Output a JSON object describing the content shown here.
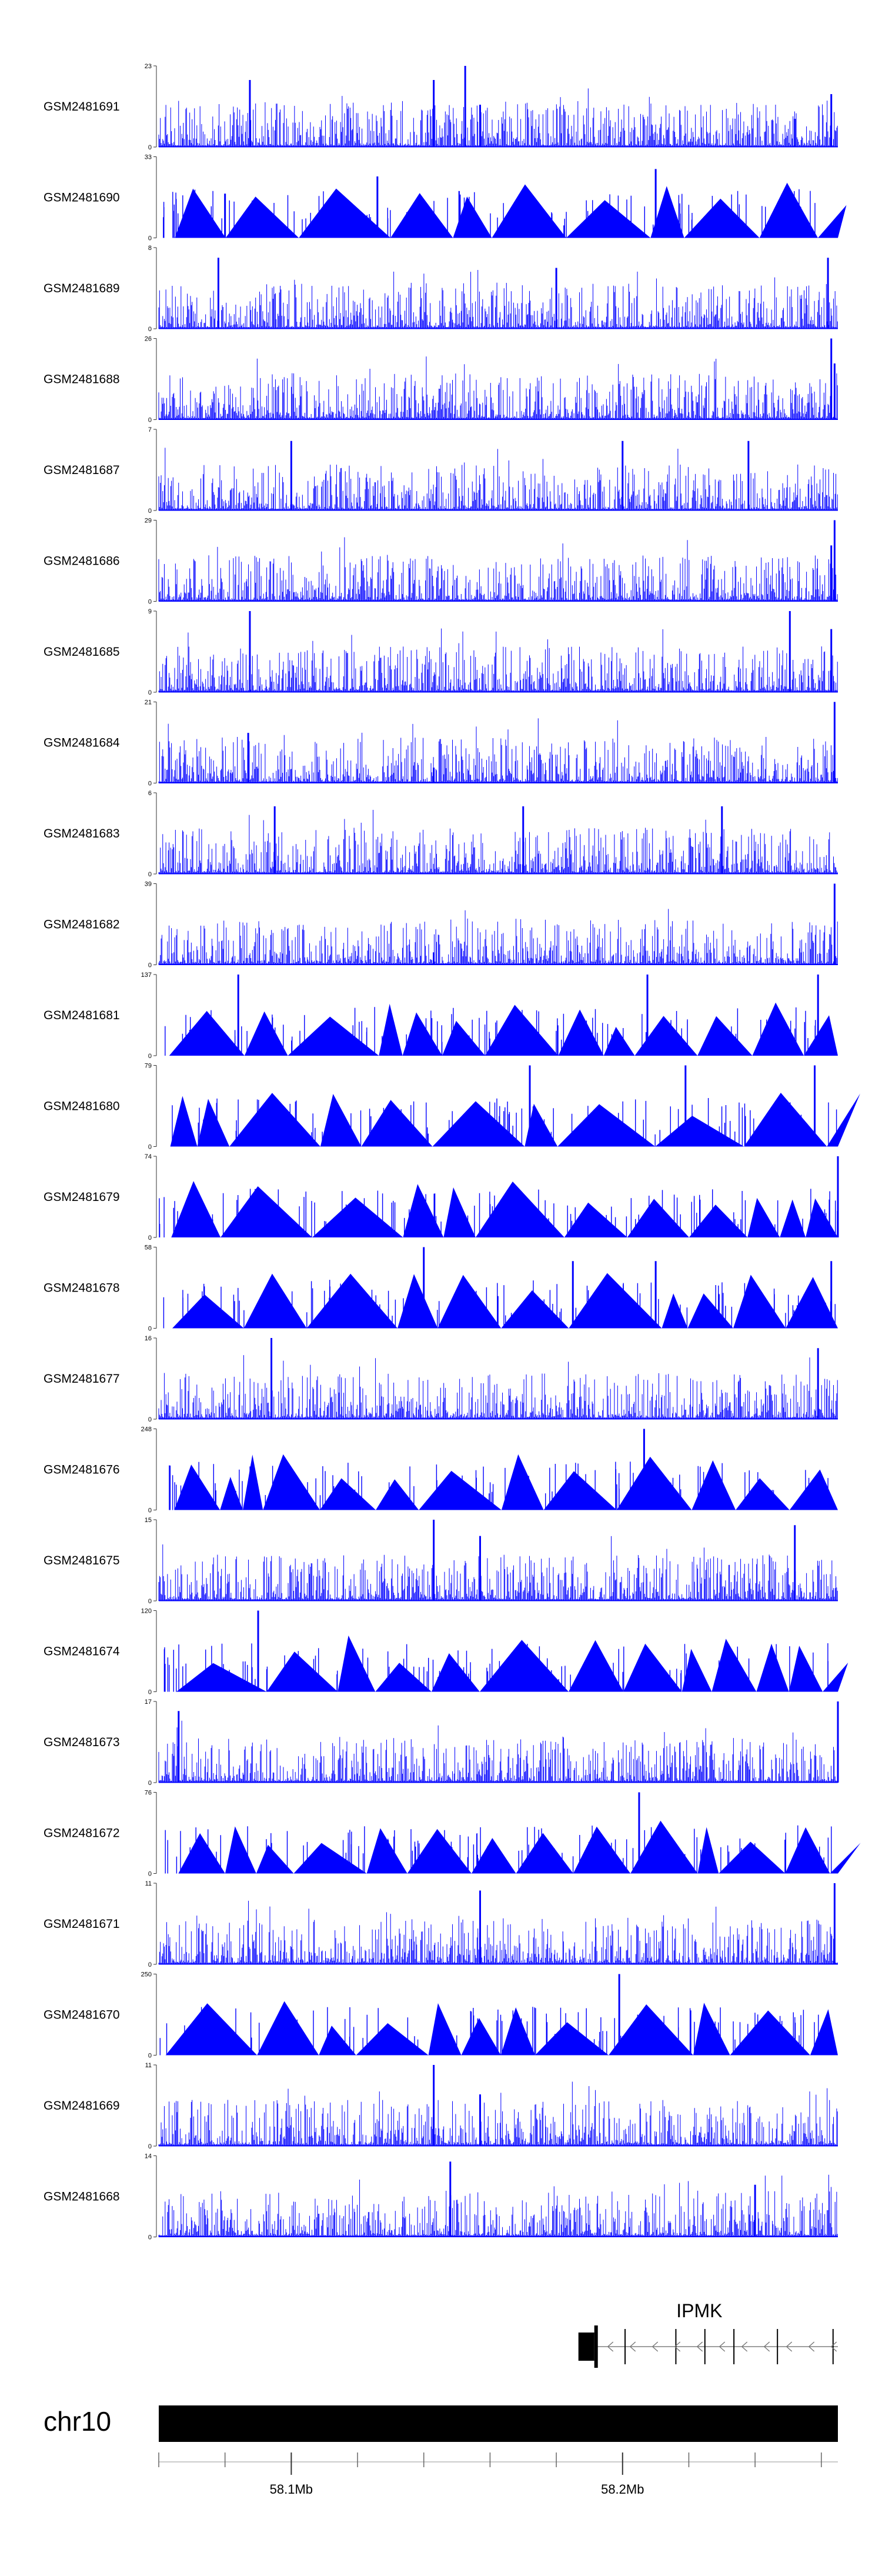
{
  "chart_data": {
    "type": "area",
    "title": "",
    "chromosome": "chr10",
    "xlim_bp": [
      58060000,
      58265000
    ],
    "x_ticks": [
      {
        "bp": 58100000,
        "label": "58.1Mb"
      },
      {
        "bp": 58200000,
        "label": "58.2Mb"
      }
    ],
    "gene": {
      "name": "IPMK",
      "start_bp": 58192000,
      "end_bp": 58265000,
      "strand": "-"
    },
    "series": [
      {
        "name": "GSM2481691",
        "ylim": [
          0,
          23
        ],
        "style": "dense",
        "peaks": [
          [
            58087500,
            19
          ],
          [
            58143000,
            19
          ],
          [
            58152500,
            23
          ],
          [
            58157000,
            12
          ],
          [
            58252000,
            8
          ],
          [
            58263000,
            15
          ]
        ]
      },
      {
        "name": "GSM2481690",
        "ylim": [
          0,
          33
        ],
        "style": "sparse",
        "peaks": [
          [
            58080000,
            18
          ],
          [
            58126000,
            25
          ],
          [
            58210000,
            28
          ]
        ]
      },
      {
        "name": "GSM2481689",
        "ylim": [
          0,
          8
        ],
        "style": "dense",
        "peaks": [
          [
            58078000,
            7
          ],
          [
            58180000,
            6
          ],
          [
            58262000,
            7
          ]
        ]
      },
      {
        "name": "GSM2481688",
        "ylim": [
          0,
          26
        ],
        "style": "dense",
        "peaks": [
          [
            58263000,
            26
          ],
          [
            58264000,
            18
          ]
        ]
      },
      {
        "name": "GSM2481687",
        "ylim": [
          0,
          7
        ],
        "style": "dense",
        "peaks": [
          [
            58100000,
            6
          ],
          [
            58200000,
            6
          ],
          [
            58238000,
            6
          ]
        ]
      },
      {
        "name": "GSM2481686",
        "ylim": [
          0,
          29
        ],
        "style": "dense",
        "peaks": [
          [
            58264000,
            29
          ],
          [
            58263000,
            20
          ]
        ]
      },
      {
        "name": "GSM2481685",
        "ylim": [
          0,
          9
        ],
        "style": "dense",
        "peaks": [
          [
            58087500,
            9
          ],
          [
            58250500,
            9
          ],
          [
            58263000,
            7
          ]
        ]
      },
      {
        "name": "GSM2481684",
        "ylim": [
          0,
          21
        ],
        "style": "dense",
        "peaks": [
          [
            58087000,
            13
          ],
          [
            58143000,
            4
          ],
          [
            58264000,
            21
          ]
        ]
      },
      {
        "name": "GSM2481683",
        "ylim": [
          0,
          6
        ],
        "style": "dense",
        "peaks": [
          [
            58095000,
            5
          ],
          [
            58170000,
            5
          ],
          [
            58230000,
            5
          ]
        ]
      },
      {
        "name": "GSM2481682",
        "ylim": [
          0,
          39
        ],
        "style": "dense",
        "peaks": [
          [
            58143000,
            6
          ],
          [
            58264000,
            39
          ]
        ]
      },
      {
        "name": "GSM2481681",
        "ylim": [
          0,
          137
        ],
        "style": "sparse",
        "peaks": [
          [
            58084000,
            137
          ],
          [
            58207500,
            137
          ],
          [
            58259000,
            137
          ]
        ]
      },
      {
        "name": "GSM2481680",
        "ylim": [
          0,
          79
        ],
        "style": "sparse",
        "peaks": [
          [
            58172000,
            79
          ],
          [
            58219000,
            79
          ],
          [
            58258000,
            79
          ]
        ]
      },
      {
        "name": "GSM2481679",
        "ylim": [
          0,
          74
        ],
        "style": "sparse",
        "peaks": [
          [
            58265000,
            74
          ]
        ]
      },
      {
        "name": "GSM2481678",
        "ylim": [
          0,
          58
        ],
        "style": "sparse",
        "peaks": [
          [
            58140000,
            58
          ],
          [
            58185000,
            48
          ],
          [
            58210000,
            48
          ],
          [
            58263000,
            48
          ]
        ]
      },
      {
        "name": "GSM2481677",
        "ylim": [
          0,
          16
        ],
        "style": "dense",
        "peaks": [
          [
            58094000,
            16
          ],
          [
            58259000,
            14
          ]
        ]
      },
      {
        "name": "GSM2481676",
        "ylim": [
          0,
          248
        ],
        "style": "sparse",
        "peaks": [
          [
            58206500,
            248
          ]
        ]
      },
      {
        "name": "GSM2481675",
        "ylim": [
          0,
          15
        ],
        "style": "dense",
        "peaks": [
          [
            58143000,
            15
          ],
          [
            58157000,
            12
          ],
          [
            58252000,
            14
          ]
        ]
      },
      {
        "name": "GSM2481674",
        "ylim": [
          0,
          120
        ],
        "style": "sparse",
        "peaks": [
          [
            58090000,
            120
          ]
        ]
      },
      {
        "name": "GSM2481673",
        "ylim": [
          0,
          17
        ],
        "style": "dense",
        "peaks": [
          [
            58066000,
            15
          ],
          [
            58265000,
            17
          ]
        ]
      },
      {
        "name": "GSM2481672",
        "ylim": [
          0,
          76
        ],
        "style": "sparse",
        "peaks": [
          [
            58205000,
            76
          ]
        ]
      },
      {
        "name": "GSM2481671",
        "ylim": [
          0,
          11
        ],
        "style": "dense",
        "peaks": [
          [
            58157000,
            10
          ],
          [
            58264000,
            11
          ]
        ]
      },
      {
        "name": "GSM2481670",
        "ylim": [
          0,
          250
        ],
        "style": "sparse",
        "peaks": [
          [
            58199000,
            250
          ]
        ]
      },
      {
        "name": "GSM2481669",
        "ylim": [
          0,
          11
        ],
        "style": "dense",
        "peaks": [
          [
            58143000,
            11
          ],
          [
            58157000,
            7
          ]
        ]
      },
      {
        "name": "GSM2481668",
        "ylim": [
          0,
          14
        ],
        "style": "dense",
        "peaks": [
          [
            58148000,
            13
          ],
          [
            58240000,
            9
          ]
        ]
      }
    ]
  }
}
